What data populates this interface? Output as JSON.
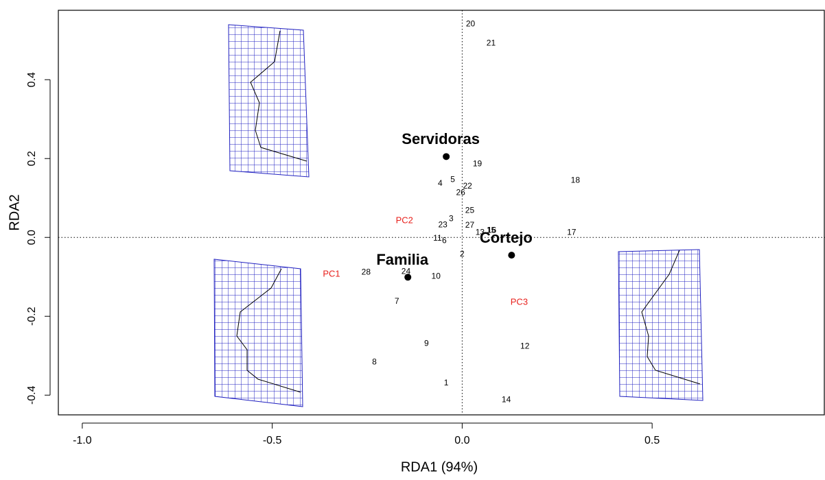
{
  "chart_data": {
    "type": "scatter",
    "xlabel": "RDA1 (94%)",
    "ylabel": "RDA2",
    "xlim": [
      -1.063,
      0.955
    ],
    "ylim": [
      -0.45,
      0.576
    ],
    "xticks": [
      {
        "value": -1.0,
        "label": "-1.0"
      },
      {
        "value": -0.5,
        "label": "-0.5"
      },
      {
        "value": 0,
        "label": "0.0"
      },
      {
        "value": 0.5,
        "label": "0.5"
      }
    ],
    "yticks": [
      {
        "value": -0.4,
        "label": "-0.4"
      },
      {
        "value": -0.2,
        "label": "-0.2"
      },
      {
        "value": 0,
        "label": "0.0"
      },
      {
        "value": 0.2,
        "label": "0.2"
      },
      {
        "value": 0.4,
        "label": "0.4"
      }
    ],
    "reference_lines": true,
    "point_labels": [
      "20",
      "21",
      "19",
      "18",
      "4",
      "5",
      "22",
      "26",
      "25",
      "3",
      "23",
      "27",
      "13",
      "15",
      "16",
      "17",
      "11",
      "6",
      "2",
      "28",
      "24",
      "10",
      "7",
      "9",
      "12",
      "8",
      "1",
      "14"
    ],
    "x": [
      0.022,
      0.076,
      0.04,
      0.298,
      -0.058,
      -0.025,
      0.014,
      -0.004,
      0.02,
      -0.029,
      -0.051,
      0.02,
      0.047,
      0.076,
      0.078,
      0.288,
      -0.065,
      -0.047,
      0.0,
      -0.253,
      -0.148,
      -0.069,
      -0.172,
      -0.094,
      0.165,
      -0.231,
      -0.042,
      0.116
    ],
    "y": [
      0.541,
      0.492,
      0.186,
      0.144,
      0.136,
      0.146,
      0.129,
      0.113,
      0.068,
      0.047,
      0.031,
      0.03,
      0.012,
      0.017,
      0.017,
      0.012,
      -0.003,
      -0.009,
      -0.043,
      -0.089,
      -0.087,
      -0.099,
      -0.163,
      -0.27,
      -0.277,
      -0.317,
      -0.37,
      -0.412
    ],
    "color": "#000000",
    "groups": [
      {
        "label": "Servidoras",
        "x": -0.042,
        "y": 0.205
      },
      {
        "label": "Familia",
        "x": -0.143,
        "y": -0.101
      },
      {
        "label": "Cortejo",
        "x": 0.13,
        "y": -0.045
      }
    ],
    "annotations": [
      {
        "text": "PC2",
        "x": -0.152,
        "y": 0.042
      },
      {
        "text": "PC1",
        "x": -0.344,
        "y": -0.094
      },
      {
        "text": "PC3",
        "x": 0.15,
        "y": -0.165
      }
    ],
    "annotation_color": "#e8201c"
  }
}
